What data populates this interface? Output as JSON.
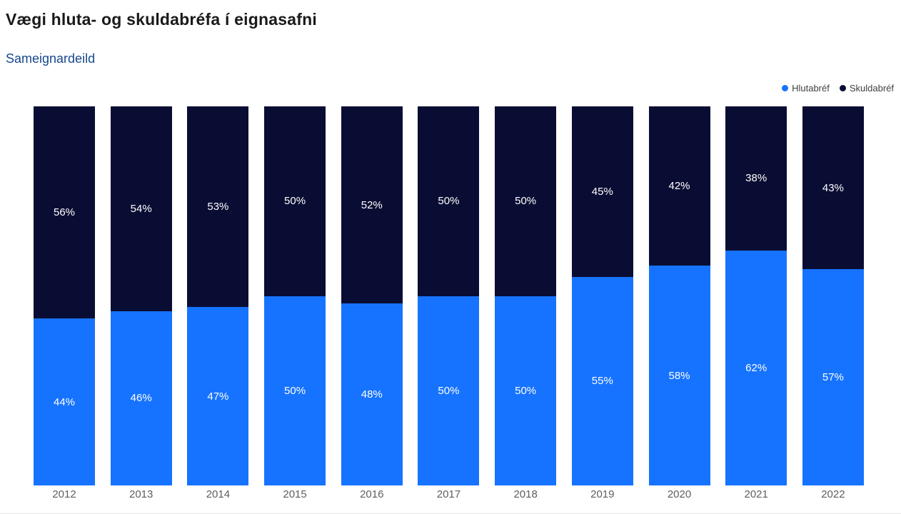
{
  "title": "Vægi hluta- og skuldabréfa í eignasafni",
  "subtitle": "Sameignardeild",
  "legend": [
    {
      "label": "Hlutabréf",
      "color": "#1673ff"
    },
    {
      "label": "Skuldabréf",
      "color": "#0a0d33"
    }
  ],
  "chart_data": {
    "type": "bar",
    "stacked": true,
    "percent_stacked": true,
    "title": "Vægi hluta- og skuldabréfa í eignasafni",
    "subtitle": "Sameignardeild",
    "xlabel": "",
    "ylabel": "",
    "ylim": [
      0,
      100
    ],
    "grid": false,
    "legend_position": "top-right",
    "value_suffix": "%",
    "categories": [
      "2012",
      "2013",
      "2014",
      "2015",
      "2016",
      "2017",
      "2018",
      "2019",
      "2020",
      "2021",
      "2022"
    ],
    "series": [
      {
        "name": "Hlutabréf",
        "color": "#1673ff",
        "values": [
          44,
          46,
          47,
          50,
          48,
          50,
          50,
          55,
          58,
          62,
          57
        ]
      },
      {
        "name": "Skuldabréf",
        "color": "#0a0d33",
        "values": [
          56,
          54,
          53,
          50,
          52,
          50,
          50,
          45,
          42,
          38,
          43
        ]
      }
    ]
  }
}
